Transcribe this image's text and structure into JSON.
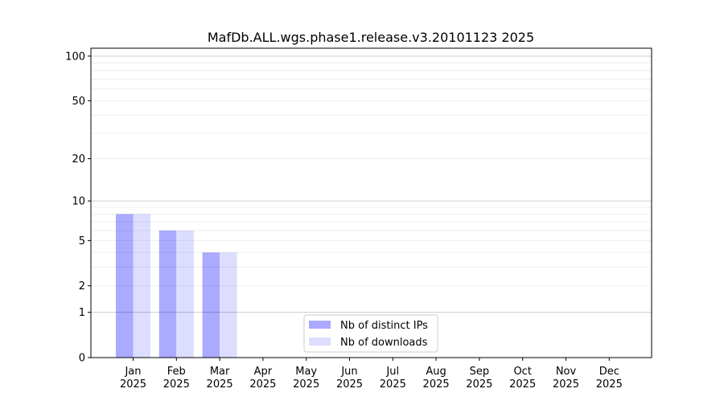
{
  "chart_data": {
    "type": "bar",
    "title": "MafDb.ALL.wgs.phase1.release.v3.20101123 2025",
    "xlabel": "",
    "ylabel": "",
    "yscale": "log(1+y)",
    "ylim": [
      0,
      113
    ],
    "yticks": [
      0,
      1,
      2,
      5,
      10,
      20,
      50,
      100
    ],
    "ytick_labels": [
      "0",
      "1",
      "2",
      "5",
      "10",
      "20",
      "50",
      "100"
    ],
    "grid": true,
    "legend_position": "bottom-center",
    "categories": [
      "Jan\n2025",
      "Feb\n2025",
      "Mar\n2025",
      "Apr\n2025",
      "May\n2025",
      "Jun\n2025",
      "Jul\n2025",
      "Aug\n2025",
      "Sep\n2025",
      "Oct\n2025",
      "Nov\n2025",
      "Dec\n2025"
    ],
    "series": [
      {
        "name": "Nb of distinct IPs",
        "color": "#aaaaff",
        "values": [
          8,
          6,
          4,
          0,
          0,
          0,
          0,
          0,
          0,
          0,
          0,
          0
        ]
      },
      {
        "name": "Nb of downloads",
        "color": "#ddddff",
        "values": [
          8,
          6,
          4,
          0,
          0,
          0,
          0,
          0,
          0,
          0,
          0,
          0
        ]
      }
    ]
  }
}
